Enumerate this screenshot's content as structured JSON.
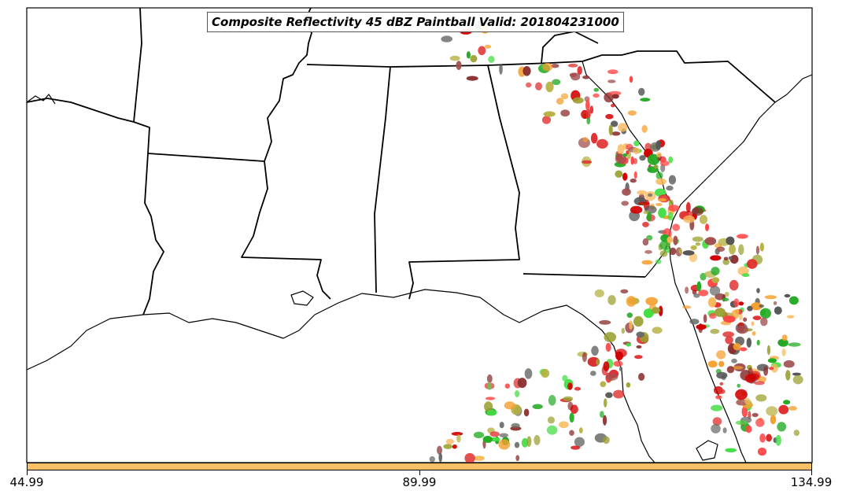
{
  "map": {
    "title": "Composite Reflectivity 45 dBZ Paintball Valid: 201804231000",
    "colorbar": {
      "color": "#f9c065",
      "tick_labels": [
        "44.99",
        "89.99",
        "134.99"
      ]
    },
    "paint_colors": [
      "#ff4444",
      "#e03030",
      "#d20000",
      "#8b2e2e",
      "#a05050",
      "#9aa030",
      "#b5b040",
      "#f5a030",
      "#f7b85a",
      "#44dd44",
      "#22aa22",
      "#555555",
      "#666a66"
    ]
  }
}
